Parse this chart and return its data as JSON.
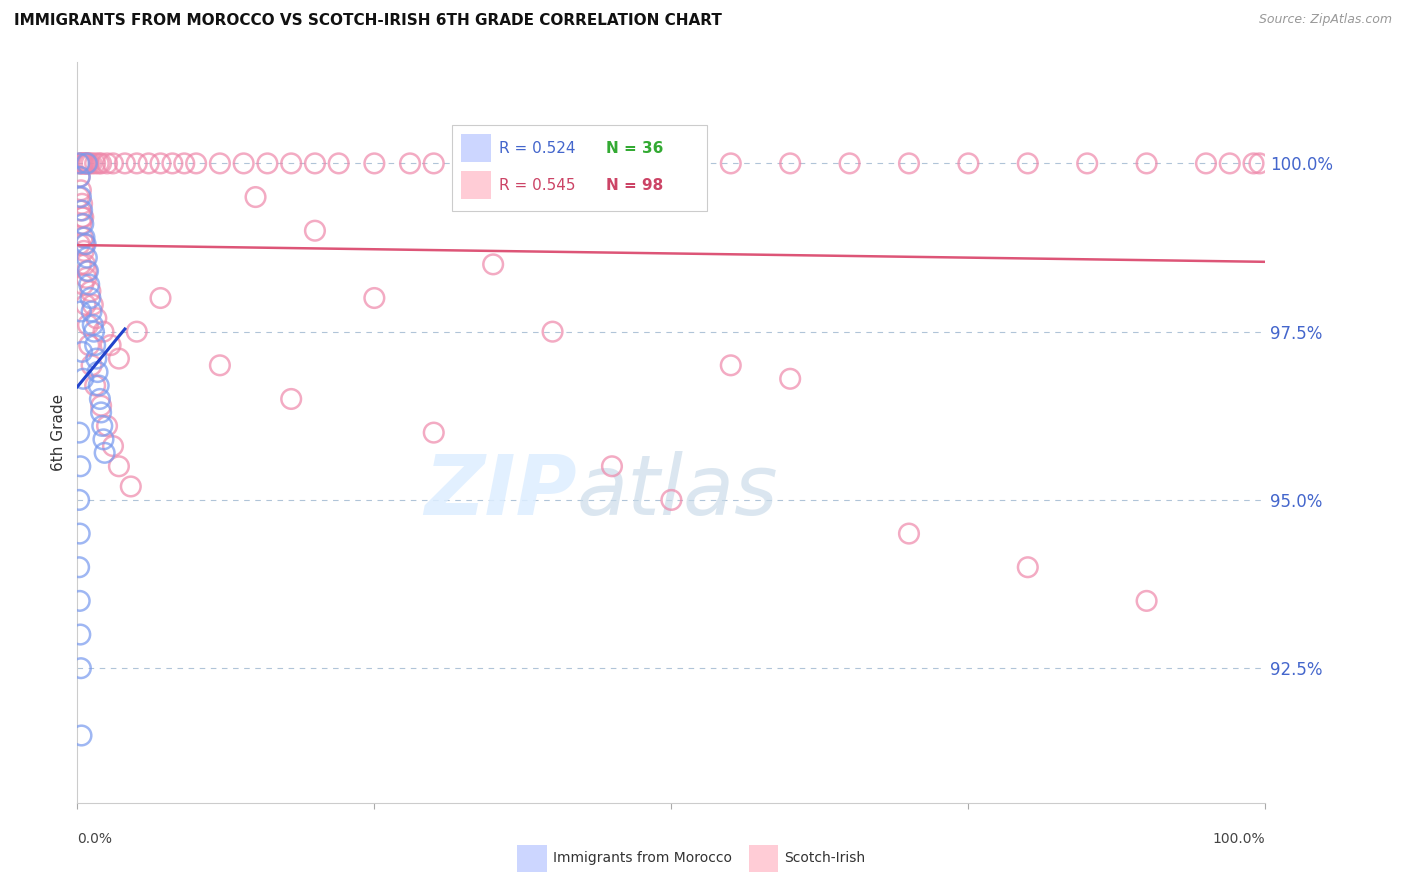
{
  "title": "IMMIGRANTS FROM MOROCCO VS SCOTCH-IRISH 6TH GRADE CORRELATION CHART",
  "source": "Source: ZipAtlas.com",
  "ylabel": "6th Grade",
  "yticks": [
    92.5,
    95.0,
    97.5,
    100.0
  ],
  "ytick_labels": [
    "92.5%",
    "95.0%",
    "97.5%",
    "100.0%"
  ],
  "xlim": [
    0.0,
    100.0
  ],
  "ylim": [
    90.5,
    101.5
  ],
  "blue_color": "#7799ee",
  "pink_color": "#ee88aa",
  "trend_blue": "#2244cc",
  "trend_pink": "#dd5577",
  "morocco_x": [
    0.15,
    0.8,
    0.2,
    0.3,
    0.4,
    0.5,
    0.6,
    0.7,
    0.8,
    0.9,
    1.0,
    1.1,
    1.2,
    1.3,
    1.4,
    1.5,
    1.6,
    1.7,
    1.8,
    1.9,
    2.0,
    2.1,
    2.2,
    2.3,
    0.3,
    0.4,
    0.5,
    0.15,
    0.25,
    0.15,
    0.2,
    0.15,
    0.2,
    0.25,
    0.3,
    0.35
  ],
  "morocco_y": [
    100.0,
    100.0,
    99.8,
    99.5,
    99.3,
    99.1,
    98.9,
    98.8,
    98.6,
    98.4,
    98.2,
    98.0,
    97.8,
    97.6,
    97.5,
    97.3,
    97.1,
    96.9,
    96.7,
    96.5,
    96.3,
    96.1,
    95.9,
    95.7,
    97.8,
    97.2,
    96.8,
    96.0,
    95.5,
    95.0,
    94.5,
    94.0,
    93.5,
    93.0,
    92.5,
    91.5
  ],
  "scotch_x": [
    0.2,
    0.3,
    0.4,
    0.5,
    0.6,
    0.7,
    0.8,
    0.9,
    1.0,
    1.2,
    1.5,
    1.8,
    2.0,
    2.5,
    3.0,
    4.0,
    5.0,
    6.0,
    7.0,
    8.0,
    9.0,
    10.0,
    12.0,
    14.0,
    16.0,
    18.0,
    20.0,
    22.0,
    25.0,
    28.0,
    30.0,
    35.0,
    40.0,
    45.0,
    50.0,
    55.0,
    60.0,
    65.0,
    70.0,
    75.0,
    80.0,
    85.0,
    90.0,
    95.0,
    97.0,
    99.0,
    99.5,
    0.15,
    0.25,
    0.35,
    0.45,
    0.55,
    0.65,
    0.75,
    1.1,
    1.3,
    1.6,
    2.2,
    2.8,
    3.5,
    0.2,
    0.3,
    0.5,
    0.7,
    0.9,
    1.0,
    1.2,
    1.5,
    2.0,
    2.5,
    3.0,
    3.5,
    4.5,
    0.4,
    0.6,
    0.8,
    25.0,
    40.0,
    55.0,
    60.0,
    15.0,
    20.0,
    35.0,
    7.0,
    5.0,
    12.0,
    18.0,
    30.0,
    45.0,
    50.0,
    70.0,
    80.0,
    90.0,
    0.2,
    0.3,
    0.4,
    0.5
  ],
  "scotch_y": [
    100.0,
    100.0,
    100.0,
    100.0,
    100.0,
    100.0,
    100.0,
    100.0,
    100.0,
    100.0,
    100.0,
    100.0,
    100.0,
    100.0,
    100.0,
    100.0,
    100.0,
    100.0,
    100.0,
    100.0,
    100.0,
    100.0,
    100.0,
    100.0,
    100.0,
    100.0,
    100.0,
    100.0,
    100.0,
    100.0,
    100.0,
    100.0,
    100.0,
    100.0,
    100.0,
    100.0,
    100.0,
    100.0,
    100.0,
    100.0,
    100.0,
    100.0,
    100.0,
    100.0,
    100.0,
    100.0,
    100.0,
    99.5,
    99.3,
    99.1,
    98.9,
    98.7,
    98.5,
    98.3,
    98.1,
    97.9,
    97.7,
    97.5,
    97.3,
    97.1,
    98.8,
    98.5,
    98.2,
    97.9,
    97.6,
    97.3,
    97.0,
    96.7,
    96.4,
    96.1,
    95.8,
    95.5,
    95.2,
    99.2,
    98.8,
    98.4,
    98.0,
    97.5,
    97.0,
    96.8,
    99.5,
    99.0,
    98.5,
    98.0,
    97.5,
    97.0,
    96.5,
    96.0,
    95.5,
    95.0,
    94.5,
    94.0,
    93.5,
    99.8,
    99.6,
    99.4,
    99.2
  ]
}
